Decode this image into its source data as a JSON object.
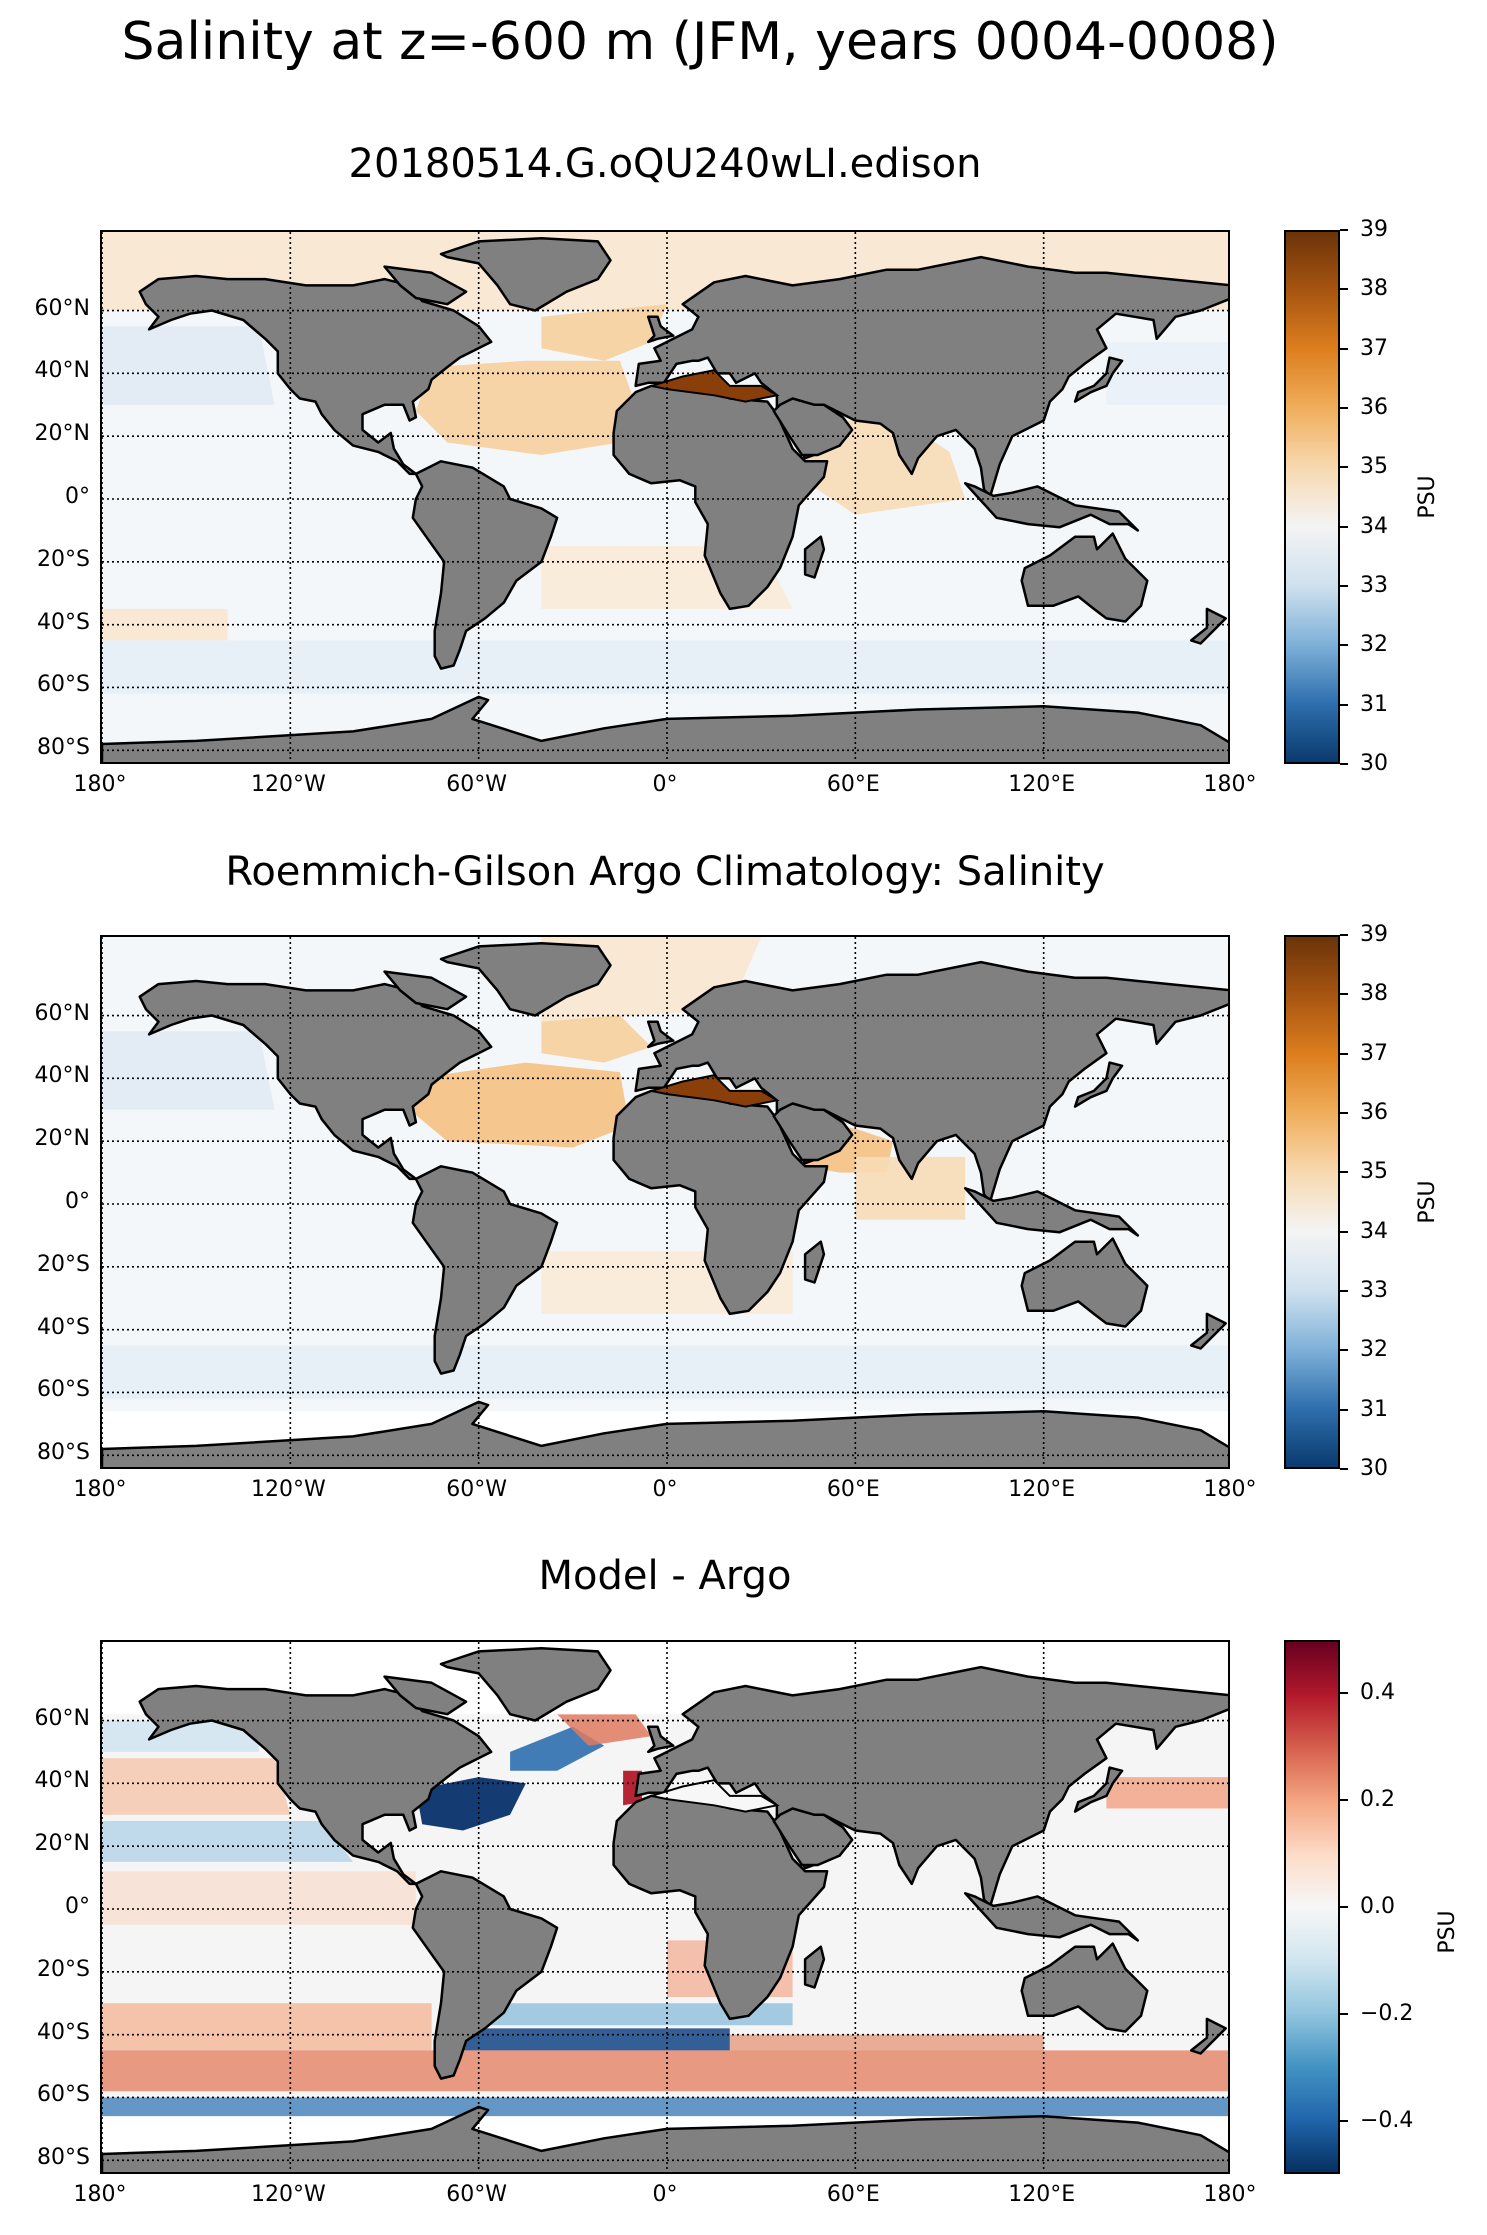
{
  "figure": {
    "title": "Salinity at z=-600 m (JFM, years 0004-0008)"
  },
  "axes": {
    "lat_ticks": [
      "60°N",
      "40°N",
      "20°N",
      "0°",
      "20°S",
      "40°S",
      "60°S",
      "80°S"
    ],
    "lon_ticks": [
      "180°",
      "120°W",
      "60°W",
      "0°",
      "60°E",
      "120°E",
      "180°"
    ],
    "lat_values": [
      60,
      40,
      20,
      0,
      -20,
      -40,
      -60,
      -80
    ],
    "lon_values": [
      -180,
      -120,
      -60,
      0,
      60,
      120,
      180
    ],
    "lat_range": [
      -85,
      85
    ],
    "lon_range": [
      -180,
      180
    ],
    "gridline_style": "dotted black",
    "land_color": "#808080",
    "coastline_color": "#000000"
  },
  "panels": [
    {
      "title": "20180514.G.oQU240wLI.edison",
      "colormap": "RdBu_r warm-to-brown (salinity)",
      "colorbar": {
        "label": "PSU",
        "ticks": [
          "30",
          "31",
          "32",
          "33",
          "34",
          "35",
          "36",
          "37",
          "38",
          "39"
        ],
        "range": [
          30,
          39
        ],
        "colors": [
          "#0a3a6e",
          "#2f6fae",
          "#7fb1d8",
          "#cfe1ef",
          "#f4f4f4",
          "#f7d9b0",
          "#f0ae5c",
          "#dd7f1e",
          "#a85511",
          "#6b3309"
        ]
      },
      "ocean_color": "#f4f7fa",
      "features": [
        "Mediterranean high salinity (dark brown)",
        "Subtropical North Atlantic saline (light orange)",
        "Arabian Sea/Red Sea saline (light orange)"
      ]
    },
    {
      "title": "Roemmich-Gilson Argo Climatology: Salinity",
      "colormap": "RdBu_r warm-to-brown (salinity)",
      "colorbar": {
        "label": "PSU",
        "ticks": [
          "30",
          "31",
          "32",
          "33",
          "34",
          "35",
          "36",
          "37",
          "38",
          "39"
        ],
        "range": [
          30,
          39
        ],
        "colors": [
          "#0a3a6e",
          "#2f6fae",
          "#7fb1d8",
          "#cfe1ef",
          "#f4f4f4",
          "#f7d9b0",
          "#f0ae5c",
          "#dd7f1e",
          "#a85511",
          "#6b3309"
        ]
      },
      "ocean_color": "#f4f7fa",
      "features": [
        "Mediterranean high salinity (dark brown)",
        "Subtropical North Atlantic saline (orange)",
        "Red Sea/Arabian Sea saline (orange)",
        "No data poleward of ~65°S (white)"
      ]
    },
    {
      "title": "Model - Argo",
      "colormap": "RdBu_r diverging (difference)",
      "colorbar": {
        "label": "PSU",
        "ticks": [
          "0.4",
          "0.2",
          "0.0",
          "−0.2",
          "−0.4"
        ],
        "tick_values": [
          0.4,
          0.2,
          0.0,
          -0.2,
          -0.4
        ],
        "range": [
          -0.5,
          0.5
        ],
        "colors": [
          "#053061",
          "#2166ac",
          "#4393c3",
          "#92c5de",
          "#d1e5f0",
          "#f7f7f7",
          "#fddbc7",
          "#f4a582",
          "#d6604d",
          "#b2182b",
          "#67001f"
        ]
      },
      "ocean_color": "#f5f5f5",
      "features": [
        "Strong negative anomaly off US East Coast / Gulf Stream (dark blue)",
        "Positive anomaly west of Iberia (dark red)",
        "Positive band ~40-55°S (orange-red)",
        "Negative band ~60-65°S (blue)"
      ]
    }
  ]
}
